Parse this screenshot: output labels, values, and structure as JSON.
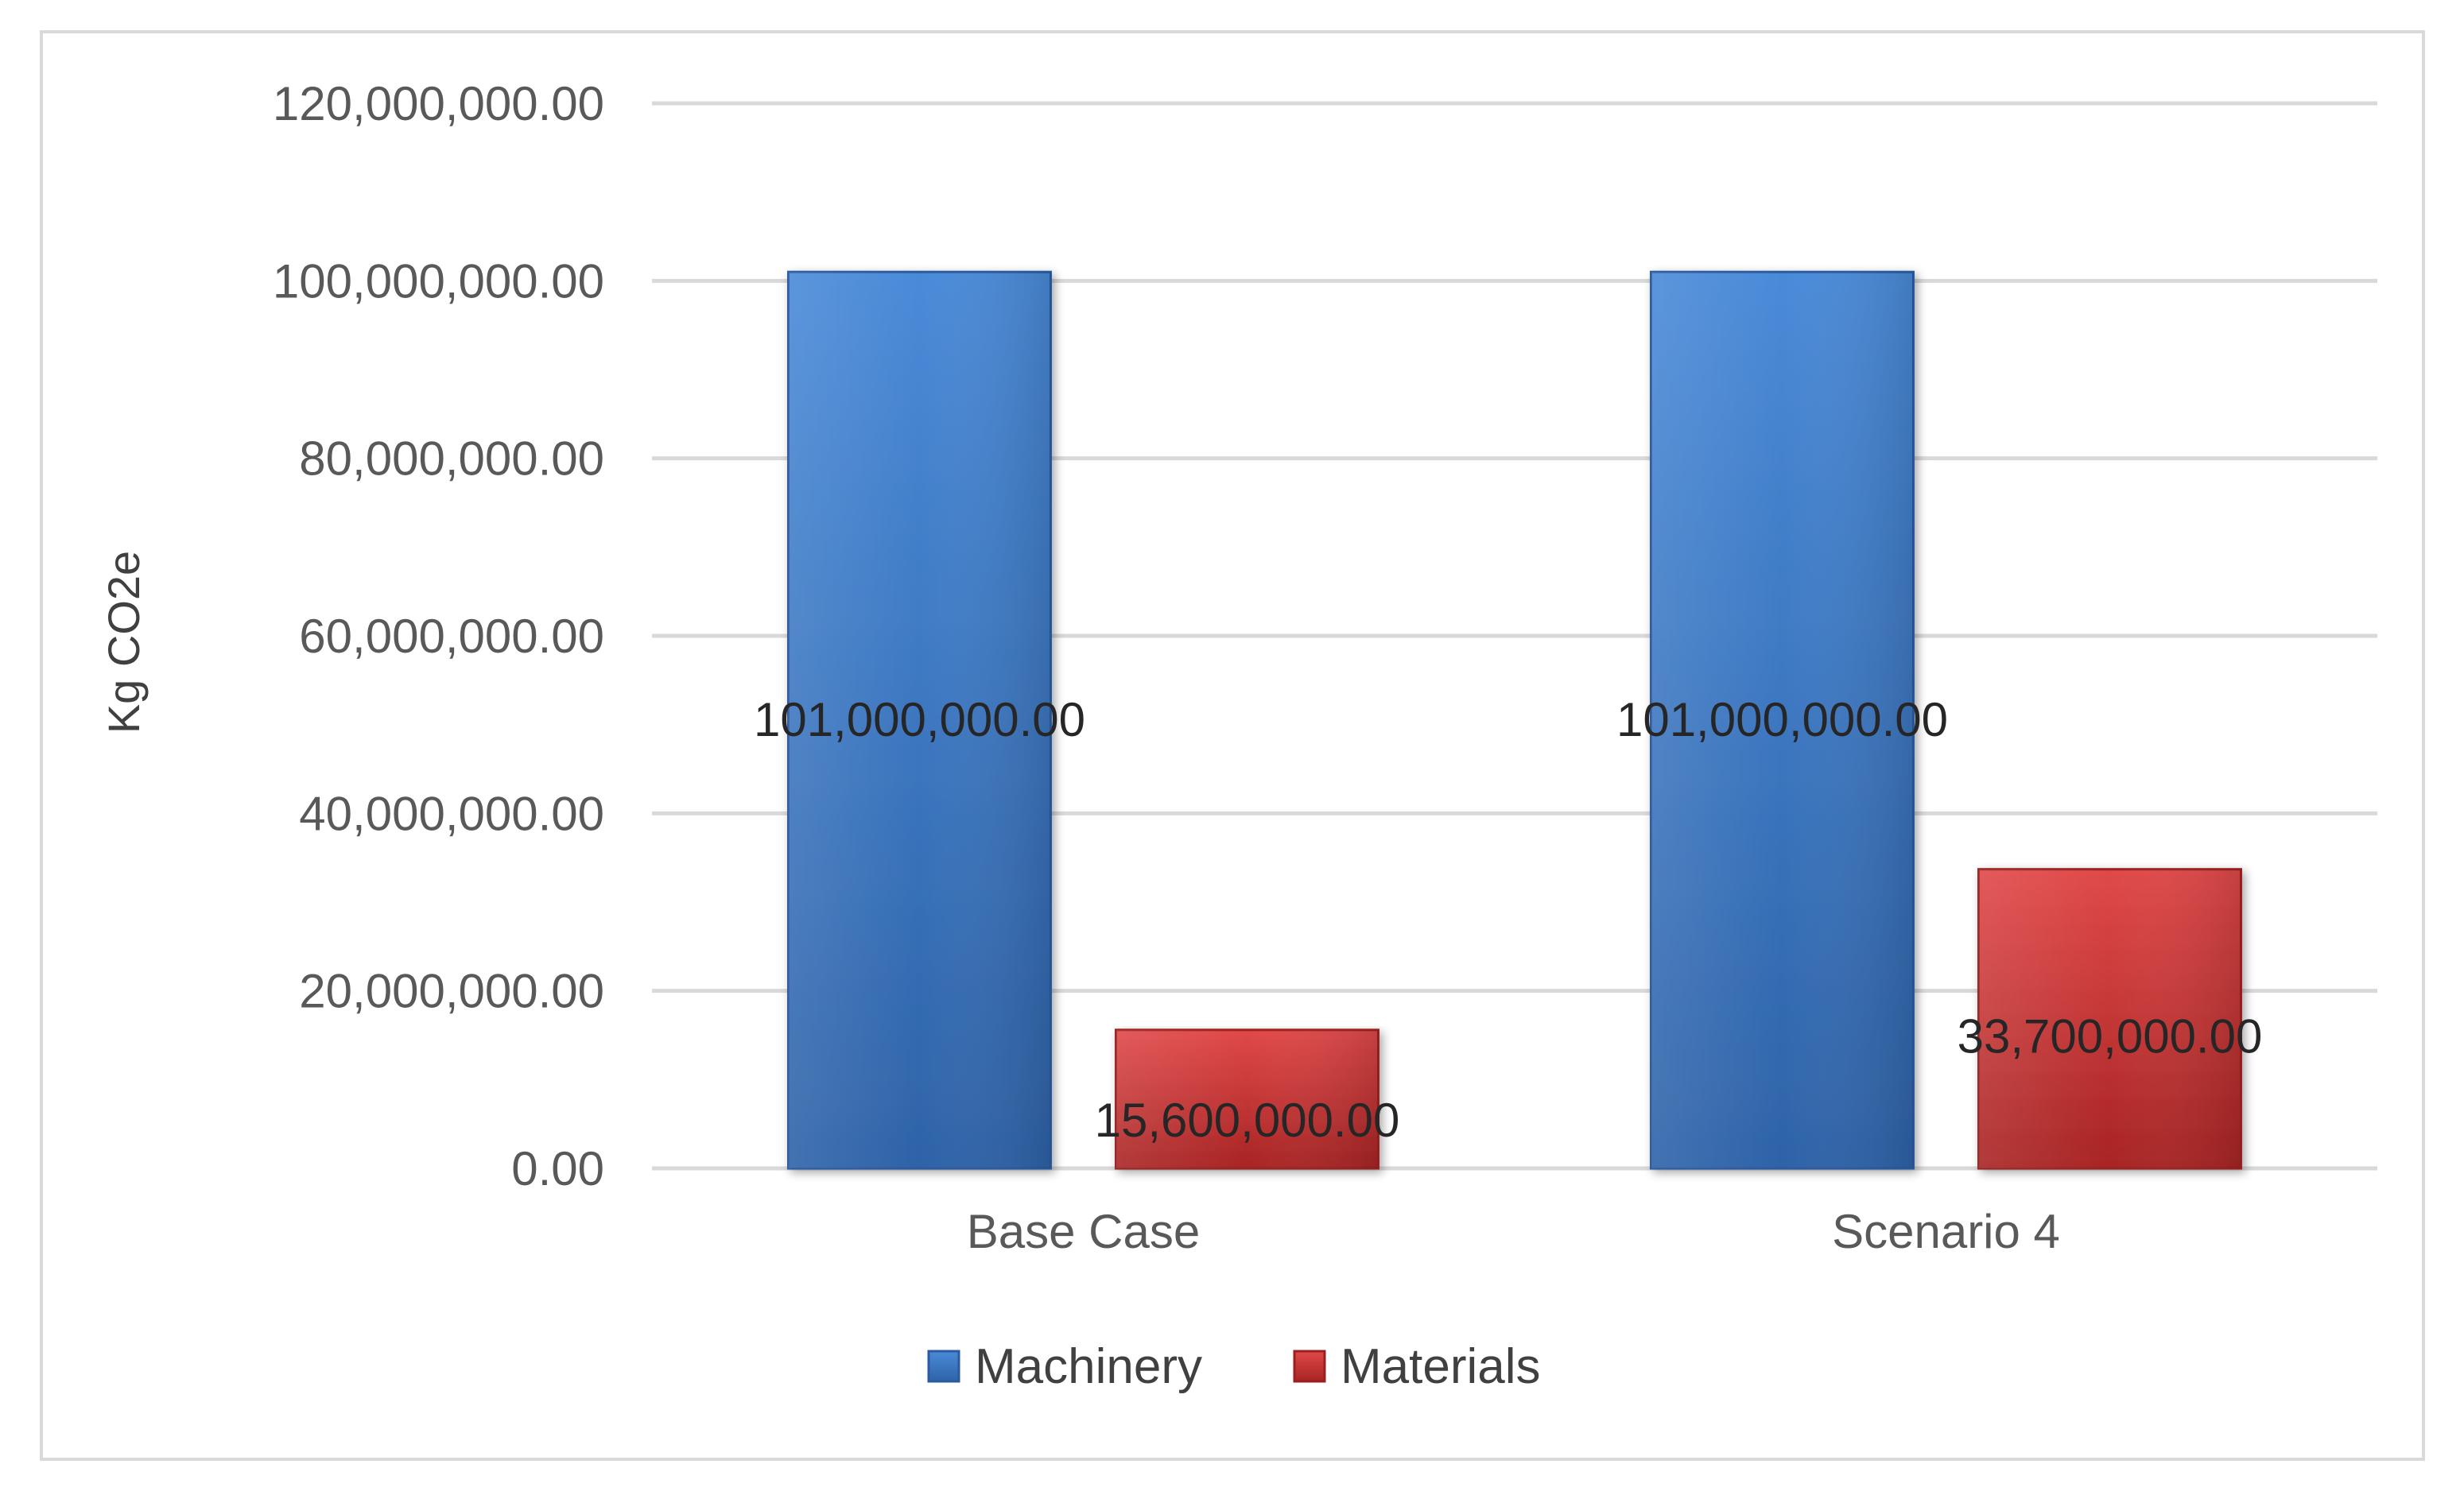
{
  "chart_data": {
    "type": "bar",
    "categories": [
      "Base Case",
      "Scenario 4"
    ],
    "series": [
      {
        "name": "Machinery",
        "values": [
          101000000,
          101000000
        ],
        "color": "#3b78c8",
        "labels": [
          "101,000,000.00",
          "101,000,000.00"
        ]
      },
      {
        "name": "Materials",
        "values": [
          15600000,
          33700000
        ],
        "color": "#c93434",
        "labels": [
          "15,600,000.00",
          "33,700,000.00"
        ]
      }
    ],
    "ylabel": "Kg CO2e",
    "ylim": [
      0,
      120000000
    ],
    "yticks": [
      0,
      20000000,
      40000000,
      60000000,
      80000000,
      100000000,
      120000000
    ],
    "ytick_labels": [
      "0.00",
      "20,000,000.00",
      "40,000,000.00",
      "60,000,000.00",
      "80,000,000.00",
      "100,000,000.00",
      "120,000,000.00"
    ],
    "grid": true,
    "legend_position": "bottom"
  }
}
